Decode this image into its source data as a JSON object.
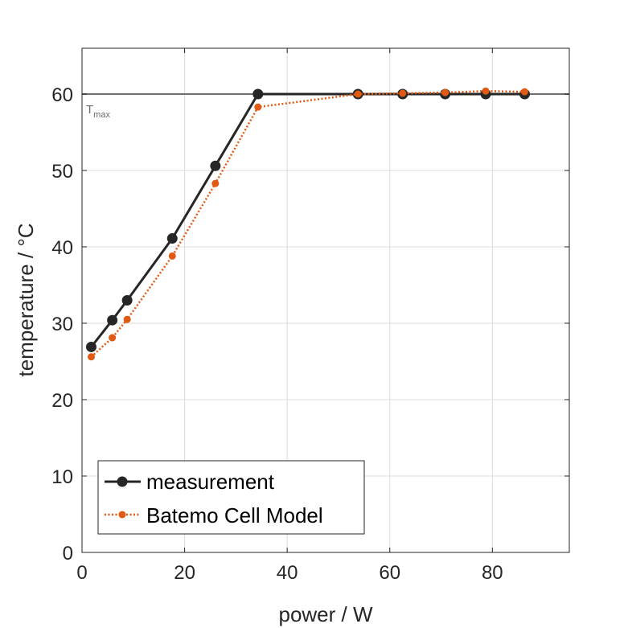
{
  "chart_data": {
    "type": "line",
    "xlabel": "power / W",
    "ylabel": "temperature / °C",
    "xlim": [
      0,
      95
    ],
    "ylim": [
      0,
      66
    ],
    "xticks": [
      0,
      20,
      40,
      60,
      80
    ],
    "yticks": [
      0,
      10,
      20,
      30,
      40,
      50,
      60
    ],
    "grid": true,
    "legend_position": "bottom-left",
    "reference_line": {
      "y": 60,
      "label": "T",
      "label_sub": "max",
      "color": "#6e6e6e"
    },
    "series": [
      {
        "name": "measurement",
        "color": "#262626",
        "style": "solid",
        "x": [
          1.8,
          5.9,
          8.8,
          17.6,
          26.0,
          34.3,
          53.8,
          62.5,
          70.8,
          78.7,
          86.3
        ],
        "y": [
          26.9,
          30.4,
          33.0,
          41.1,
          50.6,
          60.0,
          60.0,
          60.0,
          60.0,
          60.0,
          60.0
        ]
      },
      {
        "name": "Batemo Cell Model",
        "color": "#e05a14",
        "style": "dotted",
        "x": [
          1.8,
          5.9,
          8.8,
          17.6,
          26.0,
          34.3,
          53.8,
          62.5,
          70.8,
          78.7,
          86.3
        ],
        "y": [
          25.6,
          28.1,
          30.5,
          38.8,
          48.3,
          58.3,
          60.0,
          60.1,
          60.2,
          60.4,
          60.3
        ]
      }
    ]
  }
}
